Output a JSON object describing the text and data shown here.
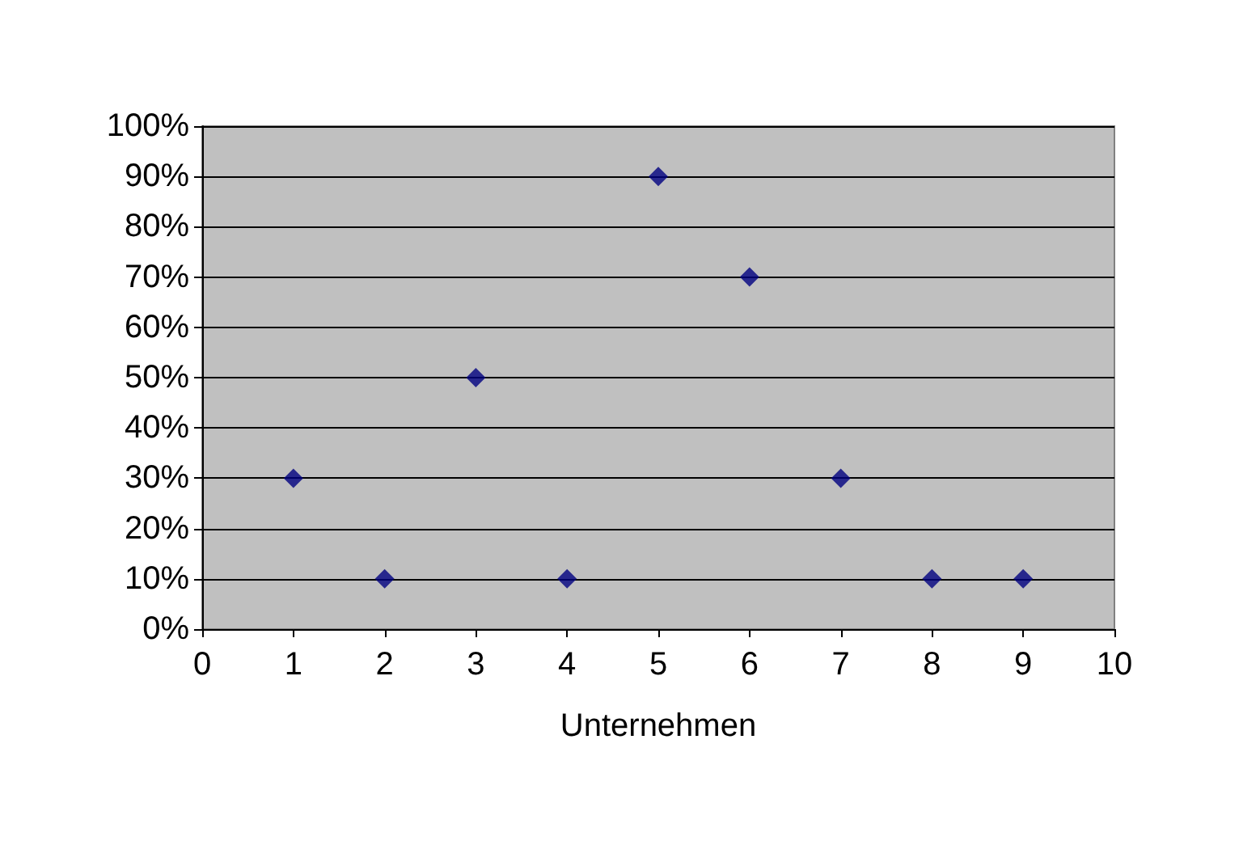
{
  "chart_data": {
    "type": "scatter",
    "xlabel": "Unternehmen",
    "x": [
      1,
      2,
      3,
      4,
      5,
      6,
      7,
      8,
      9
    ],
    "series": [
      {
        "color": "#000080",
        "values": [
          30,
          10,
          50,
          10,
          90,
          70,
          30,
          10,
          10
        ]
      }
    ],
    "xlim": [
      0,
      10
    ],
    "xticks": [
      0,
      1,
      2,
      3,
      4,
      5,
      6,
      7,
      8,
      9,
      10
    ],
    "ylim": [
      0,
      100
    ],
    "yticks": [
      {
        "value": 0,
        "label": "0%"
      },
      {
        "value": 10,
        "label": "10%"
      },
      {
        "value": 20,
        "label": "20%"
      },
      {
        "value": 30,
        "label": "30%"
      },
      {
        "value": 40,
        "label": "40%"
      },
      {
        "value": 50,
        "label": "50%"
      },
      {
        "value": 60,
        "label": "60%"
      },
      {
        "value": 70,
        "label": "70%"
      },
      {
        "value": 80,
        "label": "80%"
      },
      {
        "value": 90,
        "label": "90%"
      },
      {
        "value": 100,
        "label": "100%"
      }
    ],
    "grid": "y",
    "marker": "diamond"
  }
}
